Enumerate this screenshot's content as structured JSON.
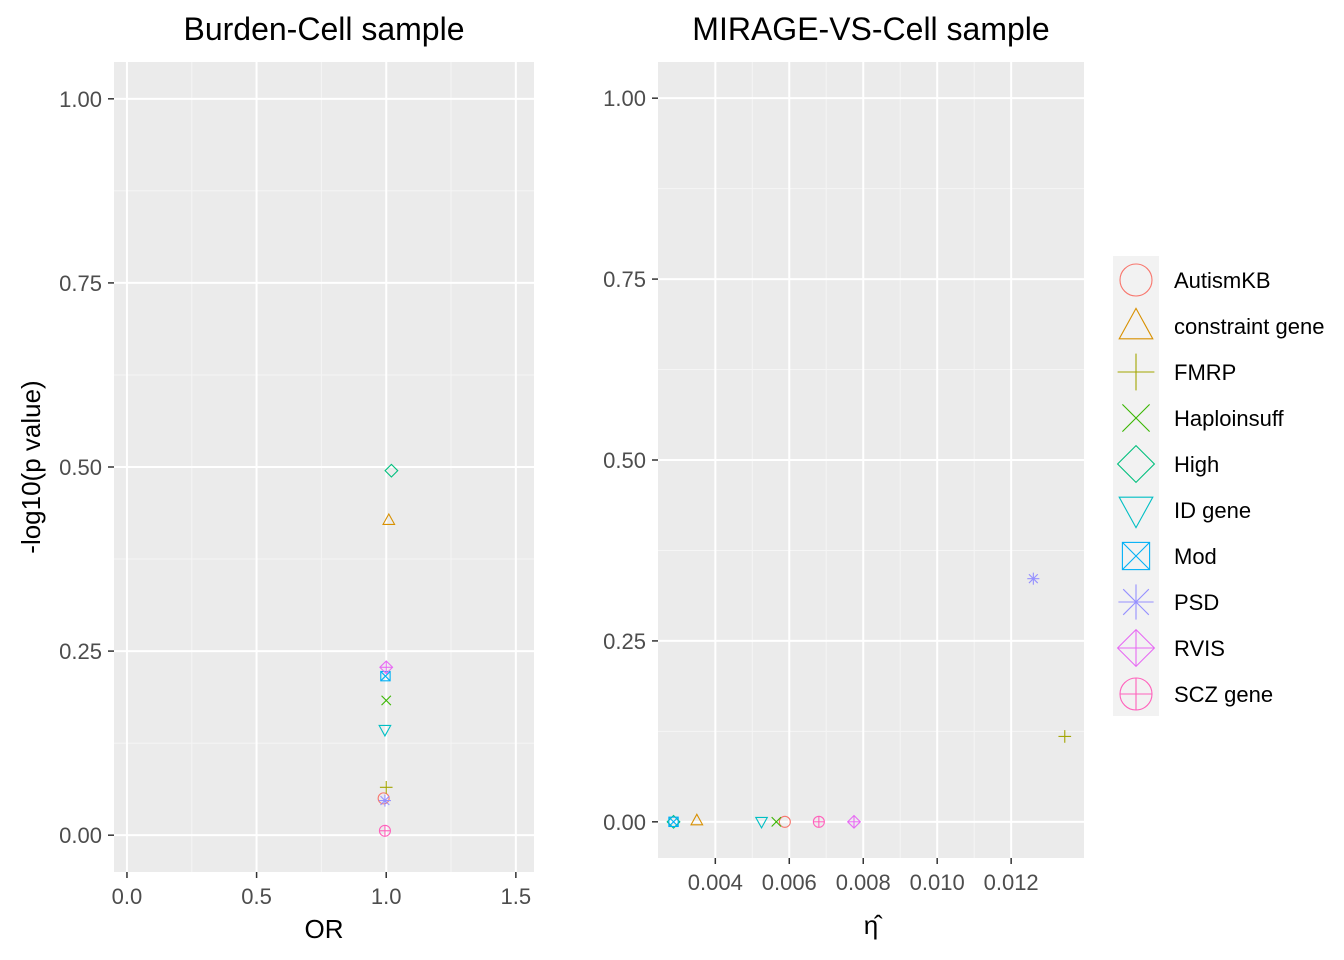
{
  "chart_data": [
    {
      "type": "scatter",
      "title": "Burden-Cell sample",
      "xlabel": "OR",
      "ylabel": "-log10(p value)",
      "xlim": [
        -0.05,
        1.57
      ],
      "ylim": [
        -0.05,
        1.05
      ],
      "xticks": [
        {
          "v": 0.0,
          "label": "0.0"
        },
        {
          "v": 0.5,
          "label": "0.5"
        },
        {
          "v": 1.0,
          "label": "1.0"
        },
        {
          "v": 1.5,
          "label": "1.5"
        }
      ],
      "yticks": [
        {
          "v": 0.0,
          "label": "0.00"
        },
        {
          "v": 0.25,
          "label": "0.25"
        },
        {
          "v": 0.5,
          "label": "0.50"
        },
        {
          "v": 0.75,
          "label": "0.75"
        },
        {
          "v": 1.0,
          "label": "1.00"
        }
      ],
      "grid": true,
      "series": [
        {
          "name": "AutismKB",
          "x": 0.99,
          "y": 0.05
        },
        {
          "name": "constraint gene",
          "x": 1.01,
          "y": 0.428
        },
        {
          "name": "FMRP",
          "x": 1.0,
          "y": 0.065
        },
        {
          "name": "Haploinsuff",
          "x": 1.0,
          "y": 0.183
        },
        {
          "name": "High",
          "x": 1.02,
          "y": 0.495
        },
        {
          "name": "ID gene",
          "x": 0.995,
          "y": 0.143
        },
        {
          "name": "Mod",
          "x": 0.997,
          "y": 0.216
        },
        {
          "name": "PSD",
          "x": 0.995,
          "y": 0.047
        },
        {
          "name": "RVIS",
          "x": 1.0,
          "y": 0.228
        },
        {
          "name": "SCZ gene",
          "x": 0.995,
          "y": 0.006
        }
      ]
    },
    {
      "type": "scatter",
      "title": "MIRAGE-VS-Cell sample",
      "xlabel": "η̂",
      "ylabel": "",
      "xlim": [
        0.00245,
        0.01397
      ],
      "ylim": [
        -0.05,
        1.05
      ],
      "xticks": [
        {
          "v": 0.004,
          "label": "0.004"
        },
        {
          "v": 0.006,
          "label": "0.006"
        },
        {
          "v": 0.008,
          "label": "0.008"
        },
        {
          "v": 0.01,
          "label": "0.010"
        },
        {
          "v": 0.012,
          "label": "0.012"
        }
      ],
      "yticks": [
        {
          "v": 0.0,
          "label": "0.00"
        },
        {
          "v": 0.25,
          "label": "0.25"
        },
        {
          "v": 0.5,
          "label": "0.50"
        },
        {
          "v": 0.75,
          "label": "0.75"
        },
        {
          "v": 1.0,
          "label": "1.00"
        }
      ],
      "grid": true,
      "series": [
        {
          "name": "AutismKB",
          "x": 0.00588,
          "y": 0.0
        },
        {
          "name": "constraint gene",
          "x": 0.0035,
          "y": 0.002
        },
        {
          "name": "FMRP",
          "x": 0.01345,
          "y": 0.118
        },
        {
          "name": "Haploinsuff",
          "x": 0.00565,
          "y": 0.0
        },
        {
          "name": "High",
          "x": 0.00287,
          "y": 0.0
        },
        {
          "name": "ID gene",
          "x": 0.00525,
          "y": 0.0
        },
        {
          "name": "Mod",
          "x": 0.00287,
          "y": 0.0
        },
        {
          "name": "PSD",
          "x": 0.0126,
          "y": 0.336
        },
        {
          "name": "RVIS",
          "x": 0.00775,
          "y": 0.0
        },
        {
          "name": "SCZ gene",
          "x": 0.0068,
          "y": 0.0
        }
      ]
    }
  ],
  "legend": {
    "position": "right",
    "items": [
      {
        "name": "AutismKB",
        "shape": "circle",
        "color": "#F8766D"
      },
      {
        "name": "constraint gene",
        "shape": "triangle",
        "color": "#D89000"
      },
      {
        "name": "FMRP",
        "shape": "plus",
        "color": "#A3A500"
      },
      {
        "name": "Haploinsuff",
        "shape": "cross",
        "color": "#39B600"
      },
      {
        "name": "High",
        "shape": "diamond",
        "color": "#00BF7D"
      },
      {
        "name": "ID gene",
        "shape": "triangle-down",
        "color": "#00BFC4"
      },
      {
        "name": "Mod",
        "shape": "square-cross",
        "color": "#00B0F6"
      },
      {
        "name": "PSD",
        "shape": "asterisk",
        "color": "#9590FF"
      },
      {
        "name": "RVIS",
        "shape": "diamond-plus",
        "color": "#E76BF3"
      },
      {
        "name": "SCZ gene",
        "shape": "circle-plus",
        "color": "#FF62BC"
      }
    ]
  },
  "colors": {
    "panel_background": "#EBEBEB",
    "grid_major": "#FFFFFF",
    "grid_minor": "#F5F5F5",
    "tick_text": "#4D4D4D"
  }
}
